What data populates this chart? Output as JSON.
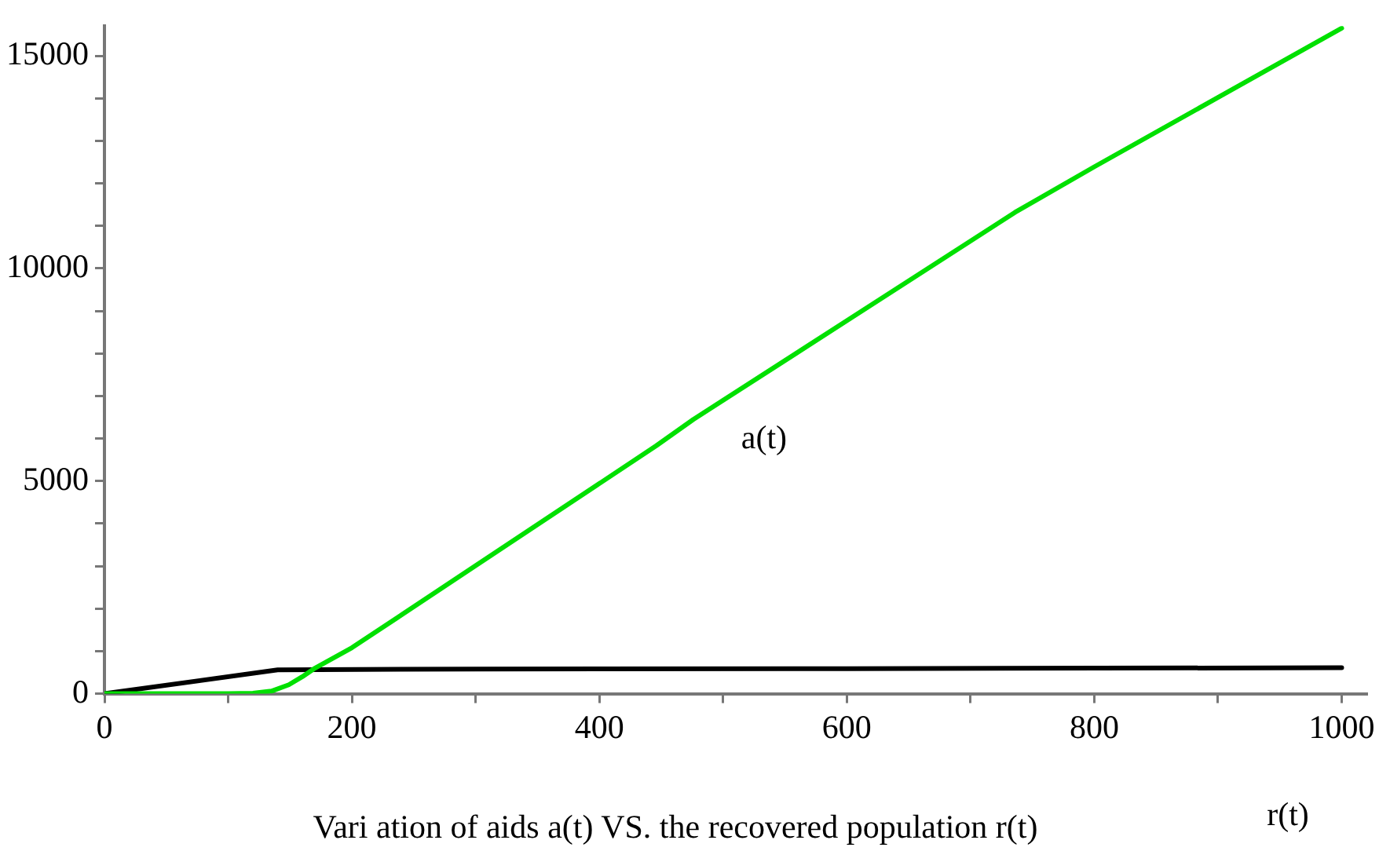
{
  "chart_data": {
    "type": "line",
    "xlabel": "r(t)",
    "x": [
      0,
      50,
      100,
      120,
      135,
      149,
      160,
      169,
      200,
      300,
      446,
      476,
      600,
      736,
      800,
      900,
      1000
    ],
    "series": [
      {
        "name": "a(t)",
        "color": "#00e000",
        "values": [
          0,
          0,
          0,
          10,
          60,
          210,
          400,
          580,
          1080,
          3010,
          5830,
          6450,
          8770,
          11320,
          12390,
          14020,
          15650
        ]
      },
      {
        "color": "#000000",
        "x": [
          0,
          140,
          300,
          600,
          1000
        ],
        "values": [
          0,
          560,
          580,
          590,
          610
        ]
      }
    ],
    "xlim": [
      0,
      1020
    ],
    "ylim": [
      0,
      15700
    ],
    "xticks": [
      0,
      {
        "value": 100,
        "label": null
      },
      200,
      {
        "value": 300,
        "label": null
      },
      400,
      {
        "value": 500,
        "label": null
      },
      600,
      {
        "value": 700,
        "label": null
      },
      800,
      {
        "value": 900,
        "label": null
      },
      1000
    ],
    "yticks": [
      0,
      {
        "value": 1000,
        "label": null
      },
      {
        "value": 2000,
        "label": null
      },
      {
        "value": 3000,
        "label": null
      },
      {
        "value": 4000,
        "label": null
      },
      5000,
      {
        "value": 6000,
        "label": null
      },
      {
        "value": 7000,
        "label": null
      },
      {
        "value": 8000,
        "label": null
      },
      {
        "value": 9000,
        "label": null
      },
      10000,
      {
        "value": 11000,
        "label": null
      },
      {
        "value": 12000,
        "label": null
      },
      {
        "value": 13000,
        "label": null
      },
      {
        "value": 14000,
        "label": null
      },
      15000
    ],
    "grid": false,
    "legend": false,
    "marker": "none",
    "line_style": "solid",
    "annotations": [
      "Vari ation of aids a(t) VS. the recovered population r(t)"
    ]
  }
}
